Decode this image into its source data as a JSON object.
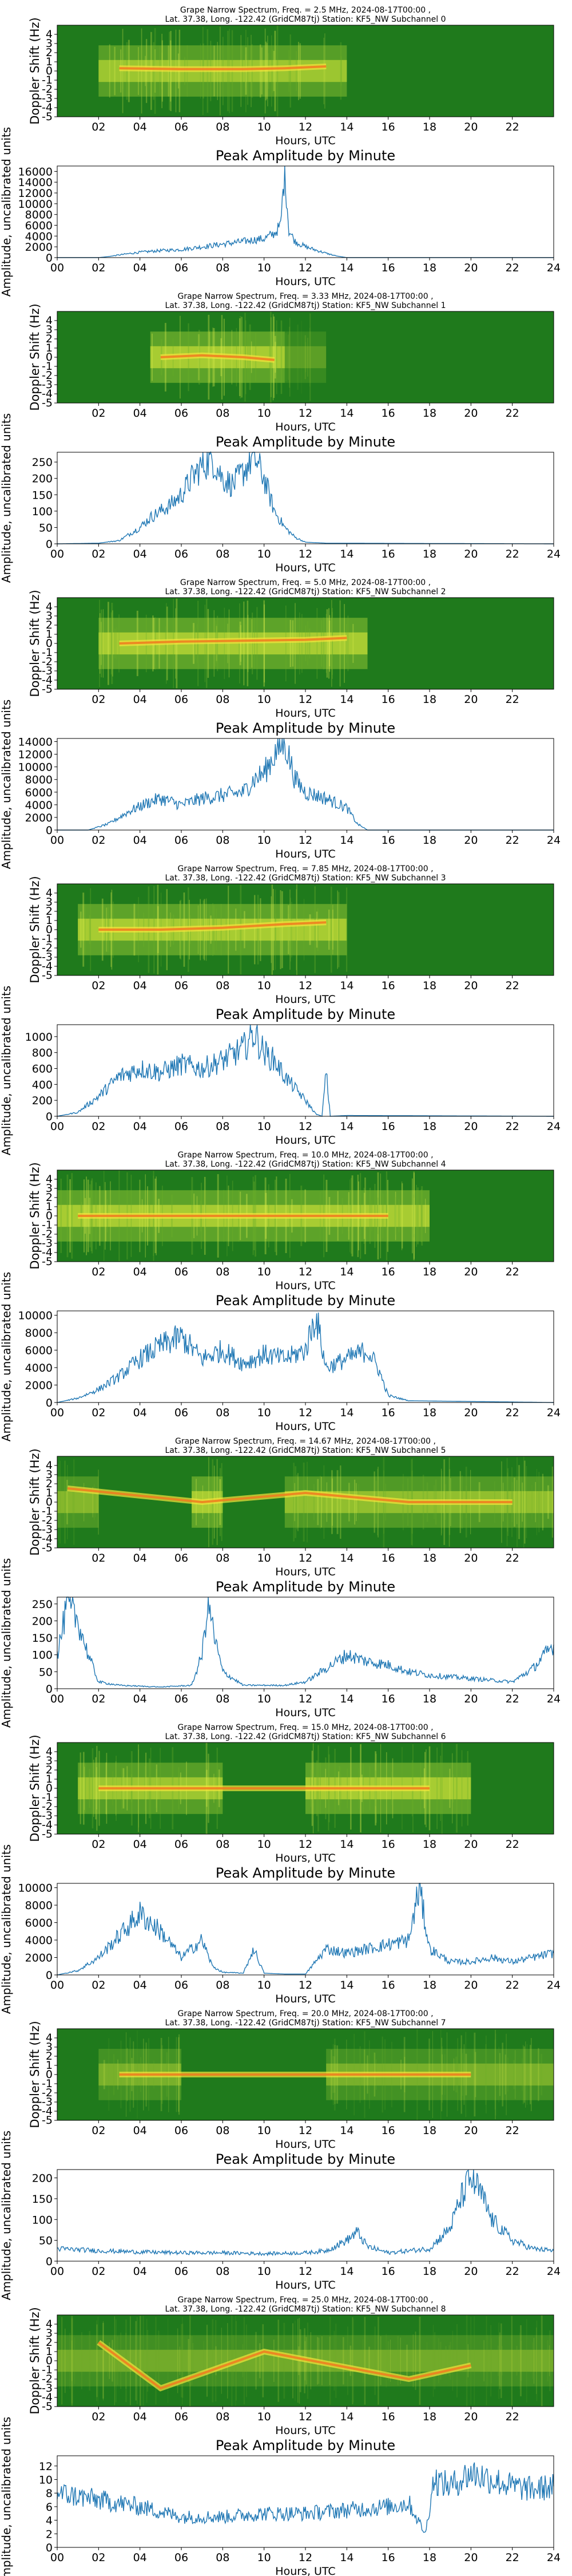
{
  "figure": {
    "x_label": "Hours, UTC",
    "x_ticks_spec": [
      "02",
      "04",
      "06",
      "08",
      "10",
      "12",
      "14",
      "16",
      "18",
      "20",
      "22"
    ],
    "x_ticks_amp": [
      "00",
      "02",
      "04",
      "06",
      "08",
      "10",
      "12",
      "14",
      "16",
      "18",
      "20",
      "22",
      "24"
    ],
    "doppler_ticks": [
      "4",
      "3",
      "2",
      "1",
      "0",
      "-1",
      "-2",
      "-3",
      "-4",
      "-5"
    ],
    "spectrogram_ylabel": "Doppler Shift (Hz)",
    "amplitude_ylabel": "Amplitude, uncalibrated units",
    "amplitude_title": "Peak Amplitude by Minute",
    "line_color": "#1f77b4"
  },
  "chart_data": [
    {
      "type": "heatmap",
      "role": "spectrogram",
      "title": "Grape Narrow Spectrum, Freq. = 2.5 MHz, 2024-08-17T00:00 ,",
      "subtitle": "Lat.  37.38, Long. -122.42 (GridCM87tj) Station: KF5_NW Subchannel 0",
      "xlabel": "Hours, UTC",
      "ylabel": "Doppler Shift (Hz)",
      "xlim": [
        0,
        24
      ],
      "ylim": [
        -5,
        5
      ],
      "activity": [
        [
          2,
          14,
          0.9
        ]
      ],
      "trace": [
        [
          3,
          0.3
        ],
        [
          6,
          0.2
        ],
        [
          9,
          0.2
        ],
        [
          11,
          0.3
        ],
        [
          13,
          0.5
        ]
      ]
    },
    {
      "type": "line",
      "role": "amplitude",
      "title": "Peak Amplitude by Minute",
      "xlabel": "Hours, UTC",
      "ylabel": "Amplitude, uncalibrated units",
      "xlim": [
        0,
        24
      ],
      "ylim": [
        0,
        17000
      ],
      "yticks": [
        0,
        2000,
        4000,
        6000,
        8000,
        10000,
        12000,
        14000,
        16000
      ],
      "x": [
        0,
        2,
        2.5,
        3,
        4,
        5,
        6,
        7,
        8,
        9,
        9.5,
        10,
        10.5,
        10.8,
        11.0,
        11.2,
        11.5,
        12,
        13,
        13.5,
        14,
        24
      ],
      "y": [
        0,
        0,
        200,
        500,
        1000,
        1300,
        1500,
        2000,
        2500,
        3000,
        3300,
        3500,
        4500,
        6000,
        16500,
        5000,
        3000,
        2000,
        800,
        300,
        0,
        0
      ]
    },
    {
      "type": "heatmap",
      "role": "spectrogram",
      "title": "Grape Narrow Spectrum, Freq. = 3.33 MHz, 2024-08-17T00:00 ,",
      "subtitle": "Lat.  37.38, Long. -122.42 (GridCM87tj) Station: KF5_NW Subchannel 1",
      "xlabel": "Hours, UTC",
      "ylabel": "Doppler Shift (Hz)",
      "xlim": [
        0,
        24
      ],
      "ylim": [
        -5,
        5
      ],
      "activity": [
        [
          4.5,
          11,
          1.0
        ],
        [
          11,
          13,
          0.4
        ]
      ],
      "trace": [
        [
          5,
          0.0
        ],
        [
          7,
          0.2
        ],
        [
          9,
          0.0
        ],
        [
          10.5,
          -0.3
        ]
      ]
    },
    {
      "type": "line",
      "role": "amplitude",
      "title": "Peak Amplitude by Minute",
      "xlabel": "Hours, UTC",
      "ylabel": "Amplitude, uncalibrated units",
      "xlim": [
        0,
        24
      ],
      "ylim": [
        0,
        280
      ],
      "yticks": [
        0,
        50,
        100,
        150,
        200,
        250
      ],
      "x": [
        0,
        2,
        3,
        3.5,
        4,
        4.5,
        5,
        5.5,
        6,
        6.5,
        7,
        7.5,
        8,
        8.5,
        9,
        9.5,
        10,
        10.5,
        11,
        11.5,
        12,
        13,
        24
      ],
      "y": [
        0,
        2,
        10,
        30,
        50,
        80,
        100,
        120,
        150,
        200,
        240,
        260,
        200,
        180,
        220,
        270,
        200,
        100,
        50,
        20,
        5,
        2,
        0
      ]
    },
    {
      "type": "heatmap",
      "role": "spectrogram",
      "title": "Grape Narrow Spectrum, Freq. = 5.0 MHz, 2024-08-17T00:00 ,",
      "subtitle": "Lat.  37.38, Long. -122.42 (GridCM87tj) Station: KF5_NW Subchannel 2",
      "xlabel": "Hours, UTC",
      "ylabel": "Doppler Shift (Hz)",
      "xlim": [
        0,
        24
      ],
      "ylim": [
        -5,
        5
      ],
      "activity": [
        [
          2,
          15,
          1.0
        ]
      ],
      "trace": [
        [
          3,
          0.0
        ],
        [
          6,
          0.2
        ],
        [
          9,
          0.3
        ],
        [
          12,
          0.4
        ],
        [
          14,
          0.6
        ]
      ]
    },
    {
      "type": "line",
      "role": "amplitude",
      "title": "Peak Amplitude by Minute",
      "xlabel": "Hours, UTC",
      "ylabel": "Amplitude, uncalibrated units",
      "xlim": [
        0,
        24
      ],
      "ylim": [
        0,
        14500
      ],
      "yticks": [
        0,
        2000,
        4000,
        6000,
        8000,
        10000,
        12000,
        14000
      ],
      "x": [
        0,
        1.5,
        2.5,
        3.5,
        4.5,
        5,
        6,
        7,
        8,
        9,
        9.5,
        10,
        10.5,
        11,
        11.5,
        12,
        13,
        14,
        14.5,
        15,
        24
      ],
      "y": [
        0,
        0,
        1000,
        3000,
        4500,
        5000,
        4000,
        5000,
        5500,
        6000,
        8000,
        9000,
        12000,
        14000,
        8000,
        6000,
        5000,
        3500,
        1000,
        0,
        0
      ]
    },
    {
      "type": "heatmap",
      "role": "spectrogram",
      "title": "Grape Narrow Spectrum, Freq. = 7.85 MHz, 2024-08-17T00:00 ,",
      "subtitle": "Lat.  37.38, Long. -122.42 (GridCM87tj) Station: KF5_NW Subchannel 3",
      "xlabel": "Hours, UTC",
      "ylabel": "Doppler Shift (Hz)",
      "xlim": [
        0,
        24
      ],
      "ylim": [
        -5,
        5
      ],
      "activity": [
        [
          1,
          14,
          1.0
        ]
      ],
      "trace": [
        [
          2,
          0.0
        ],
        [
          5,
          0.0
        ],
        [
          8,
          0.2
        ],
        [
          11,
          0.6
        ],
        [
          13,
          0.8
        ]
      ]
    },
    {
      "type": "line",
      "role": "amplitude",
      "title": "Peak Amplitude by Minute",
      "xlabel": "Hours, UTC",
      "ylabel": "Amplitude, uncalibrated units",
      "xlim": [
        0,
        24
      ],
      "ylim": [
        0,
        1150
      ],
      "yticks": [
        0,
        200,
        400,
        600,
        800,
        1000
      ],
      "x": [
        0,
        1,
        2,
        3,
        4,
        5,
        6,
        7,
        8,
        9,
        9.5,
        10,
        10.5,
        11,
        12,
        12.5,
        12.8,
        13.0,
        13.2,
        14,
        24
      ],
      "y": [
        0,
        50,
        250,
        500,
        600,
        550,
        650,
        600,
        700,
        850,
        1050,
        800,
        700,
        500,
        200,
        30,
        0,
        550,
        0,
        10,
        0
      ]
    },
    {
      "type": "heatmap",
      "role": "spectrogram",
      "title": "Grape Narrow Spectrum, Freq. = 10.0 MHz, 2024-08-17T00:00 ,",
      "subtitle": "Lat.  37.38, Long. -122.42 (GridCM87tj) Station: KF5_NW Subchannel 4",
      "xlabel": "Hours, UTC",
      "ylabel": "Doppler Shift (Hz)",
      "xlim": [
        0,
        24
      ],
      "ylim": [
        -5,
        5
      ],
      "activity": [
        [
          0,
          18,
          1.0
        ]
      ],
      "trace": [
        [
          1,
          0.0
        ],
        [
          5,
          0.0
        ],
        [
          10,
          0.0
        ],
        [
          13,
          0.0
        ],
        [
          16,
          0.0
        ]
      ]
    },
    {
      "type": "line",
      "role": "amplitude",
      "title": "Peak Amplitude by Minute",
      "xlabel": "Hours, UTC",
      "ylabel": "Amplitude, uncalibrated units",
      "xlim": [
        0,
        24
      ],
      "ylim": [
        0,
        10500
      ],
      "yticks": [
        0,
        2000,
        4000,
        6000,
        8000,
        10000
      ],
      "x": [
        0,
        1,
        2,
        3,
        4,
        5,
        6,
        7,
        8,
        9,
        10,
        11,
        12,
        12.5,
        13,
        14,
        15,
        15.5,
        16,
        17,
        24
      ],
      "y": [
        0,
        500,
        1500,
        3000,
        5000,
        6500,
        7500,
        5000,
        6000,
        4500,
        5500,
        5000,
        6000,
        10000,
        4000,
        5000,
        6000,
        4000,
        800,
        200,
        0
      ]
    },
    {
      "type": "heatmap",
      "role": "spectrogram",
      "title": "Grape Narrow Spectrum, Freq. = 14.67 MHz, 2024-08-17T00:00 ,",
      "subtitle": "Lat.  37.38, Long. -122.42 (GridCM87tj) Station: KF5_NW Subchannel 5",
      "xlabel": "Hours, UTC",
      "ylabel": "Doppler Shift (Hz)",
      "xlim": [
        0,
        24
      ],
      "ylim": [
        -5,
        5
      ],
      "activity": [
        [
          0,
          2,
          0.7
        ],
        [
          6.5,
          8,
          1.0
        ],
        [
          11,
          24,
          0.8
        ]
      ],
      "trace": [
        [
          0.5,
          1.5
        ],
        [
          7,
          0.0
        ],
        [
          12,
          1.0
        ],
        [
          17,
          0.0
        ],
        [
          22,
          0.0
        ]
      ]
    },
    {
      "type": "line",
      "role": "amplitude",
      "title": "Peak Amplitude by Minute",
      "xlabel": "Hours, UTC",
      "ylabel": "Amplitude, uncalibrated units",
      "xlim": [
        0,
        24
      ],
      "ylim": [
        0,
        270
      ],
      "yticks": [
        0,
        50,
        100,
        150,
        200,
        250
      ],
      "x": [
        0,
        0.5,
        1,
        1.5,
        2,
        3,
        5,
        6.5,
        7,
        7.3,
        7.6,
        8,
        9,
        11,
        12,
        13,
        14,
        15,
        16,
        17,
        18,
        20,
        22,
        23,
        24
      ],
      "y": [
        100,
        250,
        200,
        100,
        20,
        10,
        5,
        10,
        100,
        260,
        150,
        50,
        10,
        10,
        20,
        60,
        100,
        80,
        70,
        50,
        40,
        30,
        20,
        60,
        130
      ]
    },
    {
      "type": "heatmap",
      "role": "spectrogram",
      "title": "Grape Narrow Spectrum, Freq. = 15.0 MHz, 2024-08-17T00:00 ,",
      "subtitle": "Lat.  37.38, Long. -122.42 (GridCM87tj) Station: KF5_NW Subchannel 6",
      "xlabel": "Hours, UTC",
      "ylabel": "Doppler Shift (Hz)",
      "xlim": [
        0,
        24
      ],
      "ylim": [
        -5,
        5
      ],
      "activity": [
        [
          1,
          8,
          0.9
        ],
        [
          12,
          20,
          1.0
        ]
      ],
      "trace": [
        [
          2,
          0.0
        ],
        [
          5,
          0.0
        ],
        [
          7,
          0.0
        ],
        [
          14,
          0.0
        ],
        [
          18,
          0.0
        ]
      ]
    },
    {
      "type": "line",
      "role": "amplitude",
      "title": "Peak Amplitude by Minute",
      "xlabel": "Hours, UTC",
      "ylabel": "Amplitude, uncalibrated units",
      "xlim": [
        0,
        24
      ],
      "ylim": [
        0,
        10500
      ],
      "yticks": [
        0,
        2000,
        4000,
        6000,
        8000,
        10000
      ],
      "x": [
        0,
        1,
        2,
        3,
        4,
        5,
        6,
        7,
        7.5,
        8,
        9,
        9.5,
        10,
        11,
        12,
        13,
        14,
        15,
        16,
        17,
        17.5,
        18,
        19,
        20,
        21,
        22,
        23,
        24
      ],
      "y": [
        0,
        500,
        2000,
        4500,
        7000,
        5000,
        2000,
        4000,
        1000,
        300,
        200,
        3000,
        200,
        100,
        100,
        3000,
        2500,
        3000,
        3500,
        4000,
        10000,
        3000,
        1500,
        1500,
        2000,
        1500,
        2000,
        2500
      ]
    },
    {
      "type": "heatmap",
      "role": "spectrogram",
      "title": "Grape Narrow Spectrum, Freq. = 20.0 MHz, 2024-08-17T00:00 ,",
      "subtitle": "Lat.  37.38, Long. -122.42 (GridCM87tj) Station: KF5_NW Subchannel 7",
      "xlabel": "Hours, UTC",
      "ylabel": "Doppler Shift (Hz)",
      "xlim": [
        0,
        24
      ],
      "ylim": [
        -5,
        5
      ],
      "activity": [
        [
          2,
          6,
          0.6
        ],
        [
          13,
          24,
          0.6
        ]
      ],
      "trace": [
        [
          3,
          0.0
        ],
        [
          5,
          0.0
        ],
        [
          15,
          0.0
        ],
        [
          20,
          0.0
        ]
      ]
    },
    {
      "type": "line",
      "role": "amplitude",
      "title": "Peak Amplitude by Minute",
      "xlabel": "Hours, UTC",
      "ylabel": "Amplitude, uncalibrated units",
      "xlim": [
        0,
        24
      ],
      "ylim": [
        0,
        220
      ],
      "yticks": [
        0,
        50,
        100,
        150,
        200
      ],
      "x": [
        0,
        2,
        4,
        6,
        8,
        10,
        12,
        13,
        14,
        14.5,
        15,
        16,
        18,
        19,
        19.5,
        20,
        20.5,
        21,
        22,
        23,
        24
      ],
      "y": [
        30,
        25,
        22,
        20,
        20,
        18,
        20,
        25,
        50,
        70,
        35,
        20,
        30,
        80,
        150,
        200,
        160,
        100,
        50,
        30,
        25
      ]
    },
    {
      "type": "heatmap",
      "role": "spectrogram",
      "title": "Grape Narrow Spectrum, Freq. = 25.0 MHz, 2024-08-17T00:00 ,",
      "subtitle": "Lat.  37.38, Long. -122.42 (GridCM87tj) Station: KF5_NW Subchannel 8",
      "xlabel": "Hours, UTC",
      "ylabel": "Doppler Shift (Hz)",
      "xlim": [
        0,
        24
      ],
      "ylim": [
        -5,
        5
      ],
      "activity": [
        [
          0,
          24,
          0.55
        ]
      ],
      "trace": [
        [
          2,
          2.0
        ],
        [
          5,
          -3.0
        ],
        [
          10,
          1.0
        ],
        [
          17,
          -2.0
        ],
        [
          20,
          -0.5
        ]
      ]
    },
    {
      "type": "line",
      "role": "amplitude",
      "title": "Peak Amplitude by Minute",
      "xlabel": "Hours, UTC",
      "ylabel": "Amplitude, uncalibrated units",
      "xlim": [
        0,
        24
      ],
      "ylim": [
        0,
        13.5
      ],
      "yticks": [
        0,
        2,
        4,
        6,
        8,
        10,
        12
      ],
      "x": [
        0,
        2,
        4,
        6,
        8,
        10,
        12,
        14,
        16,
        17,
        17.8,
        18.2,
        19,
        20,
        21,
        22,
        23,
        24
      ],
      "y": [
        8,
        7,
        6,
        4.5,
        4.5,
        5,
        5,
        5.5,
        6,
        6.5,
        2,
        10,
        9,
        11,
        10,
        9,
        8.5,
        9
      ]
    }
  ]
}
